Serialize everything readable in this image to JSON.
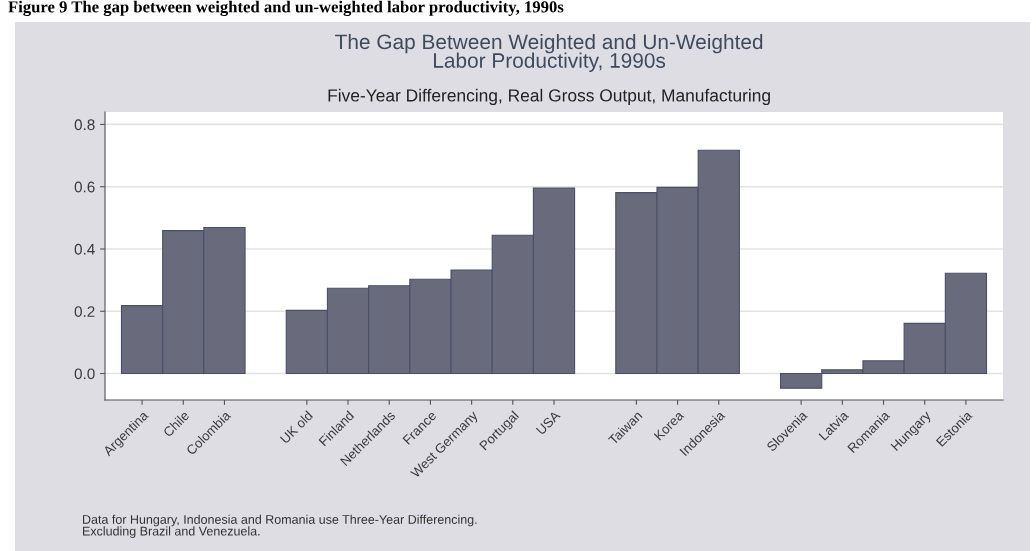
{
  "chart_data": {
    "type": "bar",
    "title": "The Gap Between Weighted and Un-Weighted\nLabor Productivity, 1990s",
    "subtitle": "Five-Year Differencing, Real Gross Output, Manufacturing",
    "categories": [
      "Argentina",
      "Chile",
      "Colombia",
      null,
      "UK old",
      "Finland",
      "Netherlands",
      "France",
      "West Germany",
      "Portugal",
      "USA",
      null,
      "Taiwan",
      "Korea",
      "Indonesia",
      null,
      "Slovenia",
      "Latvia",
      "Romania",
      "Hungary",
      "Estonia"
    ],
    "values": [
      0.218,
      0.459,
      0.469,
      null,
      0.203,
      0.274,
      0.282,
      0.303,
      0.332,
      0.444,
      0.596,
      null,
      0.581,
      0.598,
      0.717,
      null,
      -0.047,
      0.012,
      0.041,
      0.161,
      0.322
    ],
    "color": "#696a7c",
    "ylim": [
      -0.085,
      0.84
    ],
    "yticks": [
      {
        "value": 0,
        "label": "0.0"
      },
      0.2,
      0.4,
      0.6,
      0.8
    ],
    "grid": "y",
    "annotations": [
      "Figure 9 The gap between weighted and un-weighted labor productivity, 1990s",
      "Data for Hungary, Indonesia and Romania use Three-Year Differencing.\nExcluding Brazil and Venezuela."
    ]
  }
}
